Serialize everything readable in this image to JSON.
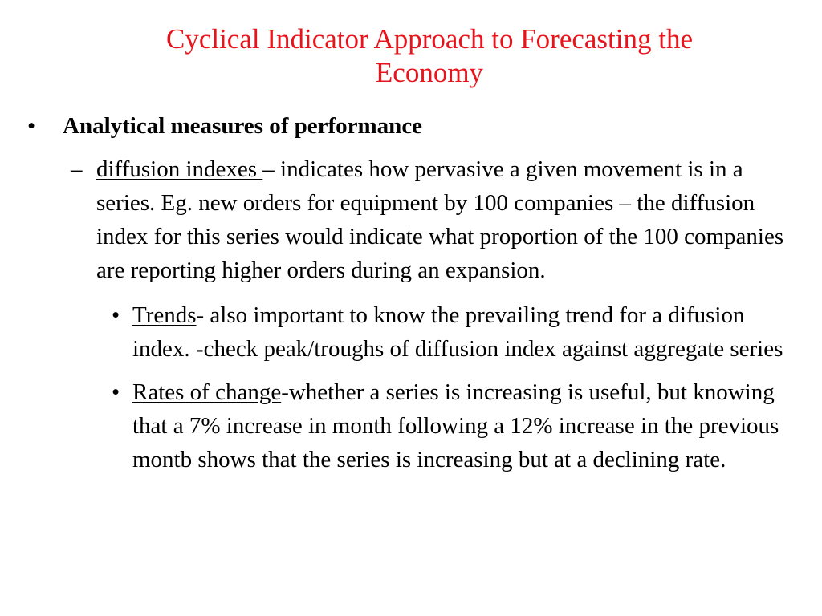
{
  "slide": {
    "title_line1": "Cyclical Indicator Approach to Forecasting the",
    "title_line2": "Economy",
    "bullet1": {
      "marker": "•",
      "text": "Analytical measures of performance"
    },
    "sub1": {
      "marker": "–",
      "term": "diffusion indexes ",
      "text": "– indicates how pervasive a given movement is in a series.  Eg. new orders for equipment by 100 companies – the diffusion index for this series would indicate what proportion of the 100 companies are reporting higher orders during an expansion."
    },
    "subsub1": {
      "marker": "•",
      "term": "Trends",
      "text": "- also important to know the prevailing trend for a difusion index.  -check peak/troughs of diffusion index against aggregate series"
    },
    "subsub2": {
      "marker": "•",
      "term": "Rates of change",
      "text": "-whether a series is increasing is useful, but knowing that a 7% increase in month following a 12% increase in the previous montb shows that the series is increasing but at a declining rate."
    }
  }
}
